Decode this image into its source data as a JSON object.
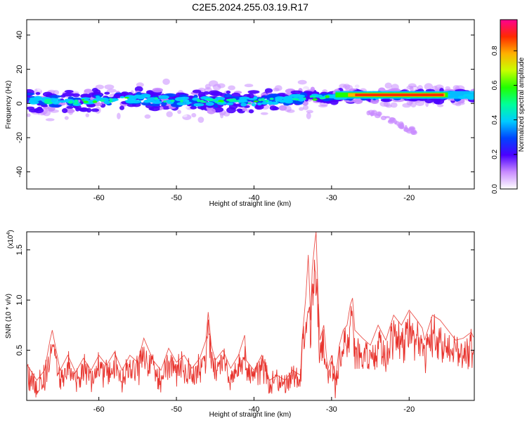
{
  "title": "C2E5.2024.255.03.19.R17",
  "chart_data": [
    {
      "type": "heatmap",
      "xlabel": "Height of straight line (km)",
      "ylabel": "Frequency (Hz)",
      "xlim": [
        -69.3,
        -11.6
      ],
      "ylim": [
        -50,
        49
      ],
      "xticks": [
        -60,
        -50,
        -40,
        -30,
        -20
      ],
      "yticks": [
        -40,
        -20,
        0,
        20,
        40
      ],
      "grid": false,
      "colorbar": {
        "label": "Normalized spectral amplitude",
        "range": [
          0,
          0.98
        ],
        "ticks": [
          0.0,
          0.2,
          0.4,
          0.6,
          0.8
        ],
        "colormap": "rainbow"
      },
      "band_centerline": {
        "x": [
          -69,
          -66,
          -63,
          -60,
          -57,
          -54,
          -51,
          -48,
          -45,
          -42,
          -39,
          -36,
          -33,
          -30,
          -27,
          -24,
          -21,
          -18,
          -15,
          -12
        ],
        "y": [
          1,
          1.5,
          1,
          2,
          2.5,
          2.5,
          2,
          1,
          1.5,
          1,
          1.5,
          2.5,
          3,
          4,
          4.5,
          4.5,
          4.5,
          4.5,
          4.5,
          4
        ]
      },
      "peak_band": {
        "x_start": -29.5,
        "x_end": -15,
        "frequency": 5,
        "amplitude": 0.95
      },
      "faint_branch": {
        "x": [
          -26,
          -23,
          -21,
          -19
        ],
        "y": [
          -5,
          -8,
          -13,
          -17
        ]
      }
    },
    {
      "type": "line",
      "xlabel": "Height of straight line (km)",
      "ylabel": "SNR (10 * v/v)",
      "scale_label": "(x10",
      "scale_exponent": "4",
      "xlim": [
        -69.3,
        -11.6
      ],
      "ylim": [
        0,
        1.68
      ],
      "xticks": [
        -60,
        -50,
        -40,
        -30,
        -20
      ],
      "yticks": [
        0.5,
        1.0,
        1.5
      ],
      "ytick_labels": [
        "0.5",
        "1.0",
        "1.5"
      ],
      "grid": false,
      "series": [
        {
          "color": "#e8322c",
          "x": [
            -69.2,
            -68,
            -67,
            -66.3,
            -66,
            -65,
            -64,
            -63,
            -62,
            -61,
            -60,
            -59,
            -58,
            -57,
            -56,
            -55,
            -54.2,
            -53,
            -52,
            -51,
            -50,
            -49,
            -48,
            -47,
            -46.2,
            -45.9,
            -45.5,
            -45,
            -44,
            -43,
            -42,
            -41.2,
            -41,
            -40,
            -39,
            -38,
            -37,
            -36,
            -35,
            -34,
            -33.8,
            -33.3,
            -33,
            -32.7,
            -32.5,
            -32.2,
            -32,
            -31.8,
            -31.5,
            -31,
            -30.5,
            -30,
            -29.5,
            -29,
            -28.5,
            -28,
            -27.6,
            -27.3,
            -27,
            -26,
            -25,
            -24,
            -23,
            -22,
            -21,
            -20,
            -19,
            -18.3,
            -18,
            -17,
            -16,
            -15,
            -14,
            -13,
            -12,
            -11.7
          ],
          "y": [
            0.35,
            0.2,
            0.3,
            0.6,
            0.7,
            0.3,
            0.45,
            0.28,
            0.42,
            0.3,
            0.45,
            0.35,
            0.48,
            0.3,
            0.45,
            0.38,
            0.62,
            0.4,
            0.3,
            0.52,
            0.38,
            0.45,
            0.32,
            0.42,
            0.6,
            0.88,
            0.55,
            0.4,
            0.5,
            0.32,
            0.45,
            0.65,
            0.4,
            0.3,
            0.45,
            0.2,
            0.25,
            0.2,
            0.3,
            0.25,
            0.6,
            1.05,
            1.45,
            0.8,
            1.3,
            1.55,
            1.68,
            1.2,
            0.6,
            0.75,
            0.3,
            0.45,
            0.2,
            0.55,
            0.7,
            0.75,
            0.95,
            1.02,
            0.7,
            0.62,
            0.55,
            0.75,
            0.6,
            0.85,
            0.75,
            0.9,
            0.8,
            0.72,
            0.6,
            0.85,
            0.8,
            0.7,
            0.6,
            0.62,
            0.68,
            0.63
          ]
        }
      ]
    }
  ]
}
